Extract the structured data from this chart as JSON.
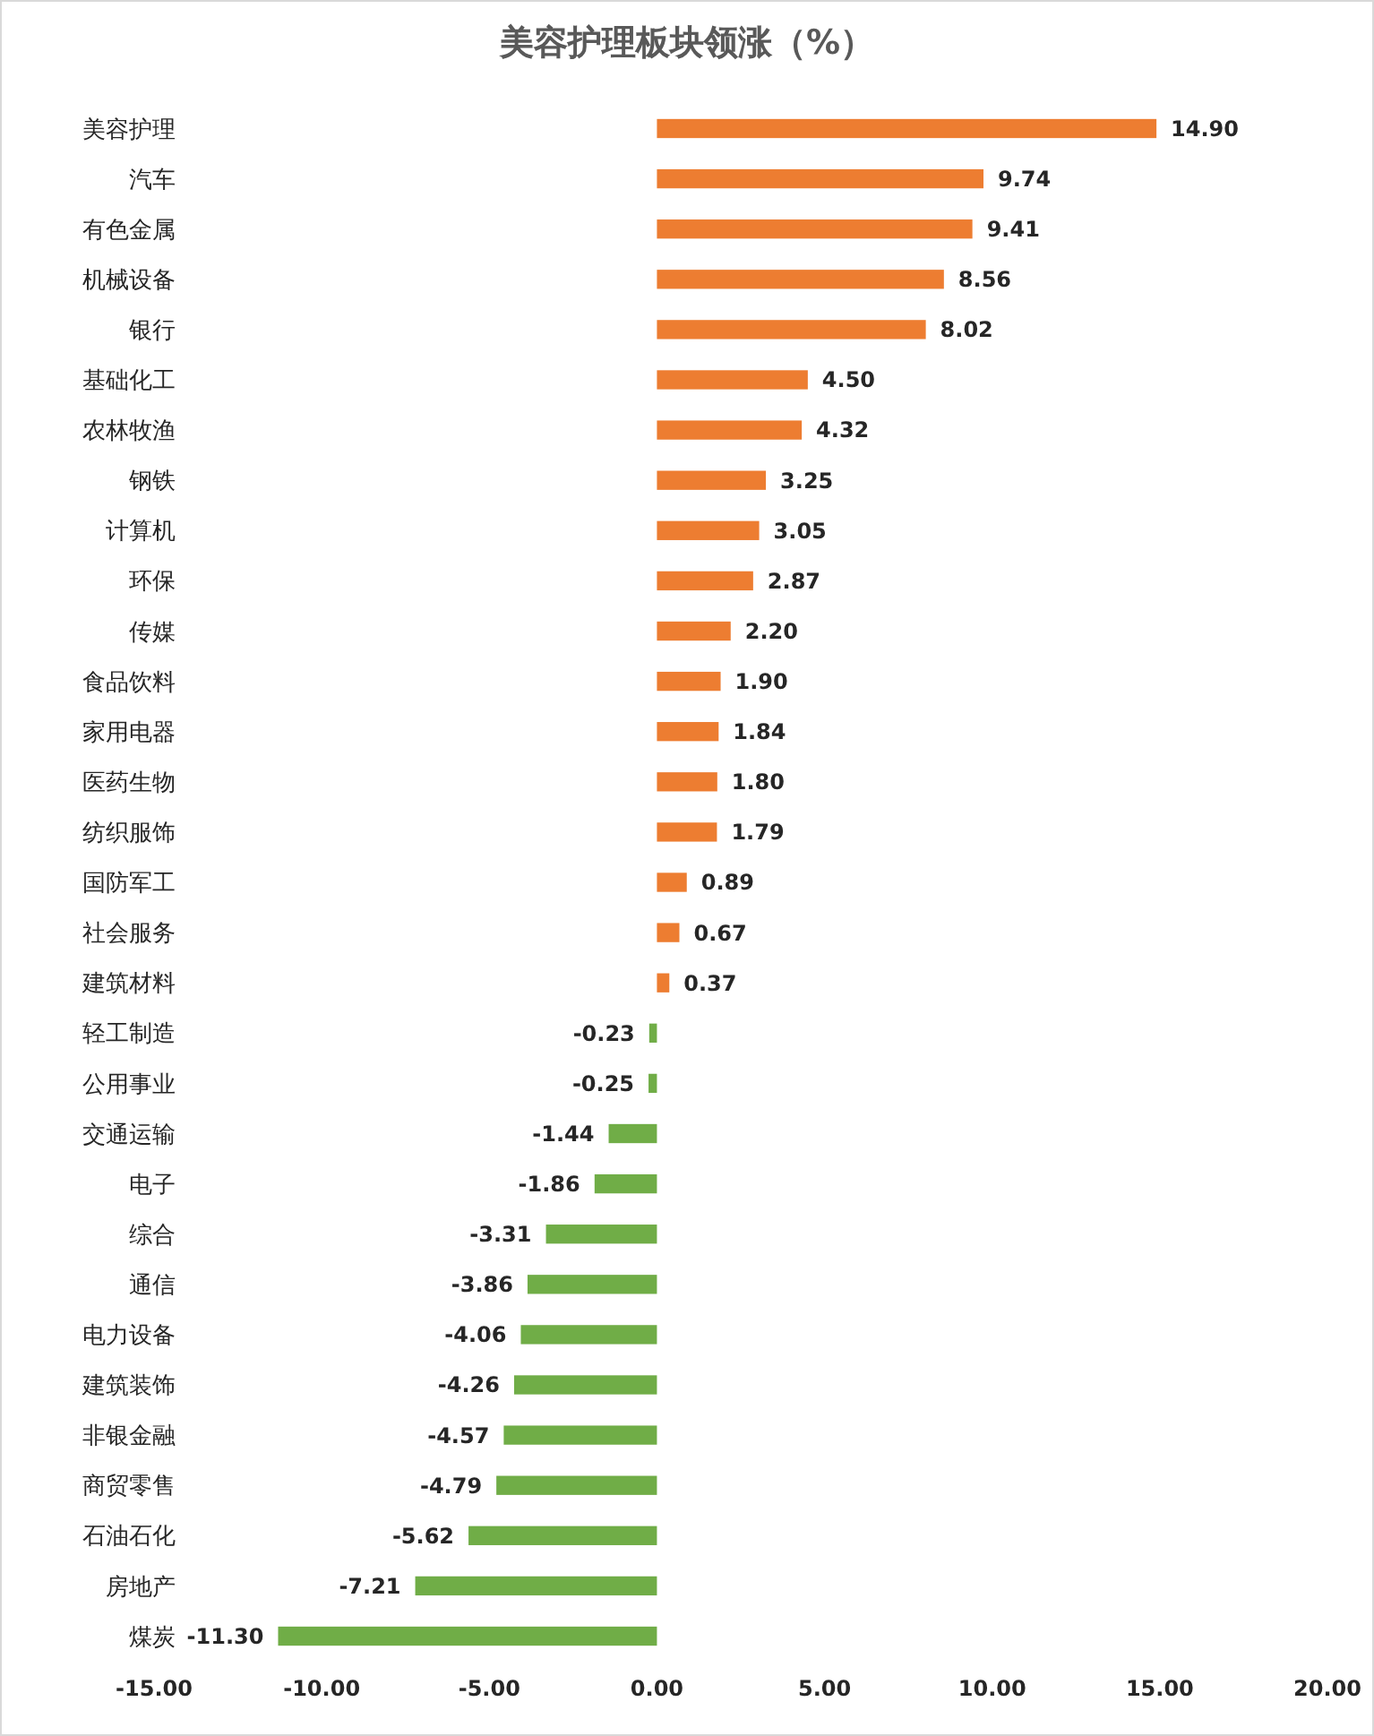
{
  "chart_data": {
    "type": "bar",
    "orientation": "horizontal",
    "title": "美容护理板块领涨（%）",
    "categories": [
      "美容护理",
      "汽车",
      "有色金属",
      "机械设备",
      "银行",
      "基础化工",
      "农林牧渔",
      "钢铁",
      "计算机",
      "环保",
      "传媒",
      "食品饮料",
      "家用电器",
      "医药生物",
      "纺织服饰",
      "国防军工",
      "社会服务",
      "建筑材料",
      "轻工制造",
      "公用事业",
      "交通运输",
      "电子",
      "综合",
      "通信",
      "电力设备",
      "建筑装饰",
      "非银金融",
      "商贸零售",
      "石油石化",
      "房地产",
      "煤炭"
    ],
    "values": [
      14.9,
      9.74,
      9.41,
      8.56,
      8.02,
      4.5,
      4.32,
      3.25,
      3.05,
      2.87,
      2.2,
      1.9,
      1.84,
      1.8,
      1.79,
      0.89,
      0.67,
      0.37,
      -0.23,
      -0.25,
      -1.44,
      -1.86,
      -3.31,
      -3.86,
      -4.06,
      -4.26,
      -4.57,
      -4.79,
      -5.62,
      -7.21,
      -11.3
    ],
    "value_labels": [
      "14.90",
      "9.74",
      "9.41",
      "8.56",
      "8.02",
      "4.50",
      "4.32",
      "3.25",
      "3.05",
      "2.87",
      "2.20",
      "1.90",
      "1.84",
      "1.80",
      "1.79",
      "0.89",
      "0.67",
      "0.37",
      "-0.23",
      "-0.25",
      "-1.44",
      "-1.86",
      "-3.31",
      "-3.86",
      "-4.06",
      "-4.26",
      "-4.57",
      "-4.79",
      "-5.62",
      "-7.21",
      "-11.30"
    ],
    "colors": [
      "#ed7d31",
      "#ed7d31",
      "#ed7d31",
      "#ed7d31",
      "#ed7d31",
      "#ed7d31",
      "#ed7d31",
      "#ed7d31",
      "#ed7d31",
      "#ed7d31",
      "#ed7d31",
      "#ed7d31",
      "#ed7d31",
      "#ed7d31",
      "#ed7d31",
      "#ed7d31",
      "#ed7d31",
      "#ed7d31",
      "#70ad47",
      "#70ad47",
      "#70ad47",
      "#70ad47",
      "#70ad47",
      "#70ad47",
      "#70ad47",
      "#70ad47",
      "#70ad47",
      "#70ad47",
      "#70ad47",
      "#70ad47",
      "#70ad47"
    ],
    "xlim": [
      -15,
      20
    ],
    "xticks": [
      {
        "value": -15,
        "label": "-15.00"
      },
      {
        "value": -10,
        "label": "-10.00"
      },
      {
        "value": -5,
        "label": "-5.00"
      },
      {
        "value": 0,
        "label": "0.00"
      },
      {
        "value": 5,
        "label": "5.00"
      },
      {
        "value": 10,
        "label": "10.00"
      },
      {
        "value": 15,
        "label": "15.00"
      },
      {
        "value": 20,
        "label": "20.00"
      }
    ],
    "grid": false
  }
}
